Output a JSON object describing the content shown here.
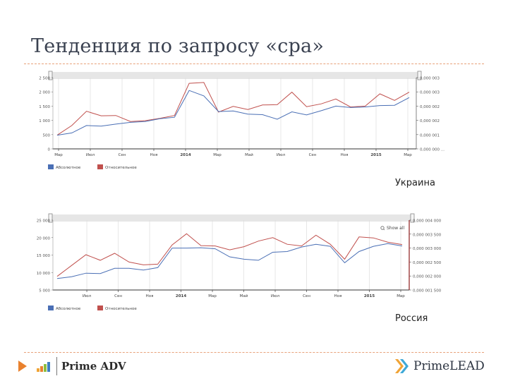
{
  "page": {
    "title": "Тенденция по запросу «cpa»"
  },
  "colors": {
    "absolute": "#4a6fb5",
    "relative": "#c0504d",
    "rule": "#e8a27a",
    "navigator": "#e6e6e6",
    "grid": "#dddddd",
    "axis": "#333333",
    "right_axis_bottom": "#8b1a1a"
  },
  "charts": [
    {
      "region_label": "Украина",
      "legend": [
        {
          "name": "Абсолютное",
          "color": "#4a6fb5"
        },
        {
          "name": "Относительное",
          "color": "#c0504d"
        }
      ]
    },
    {
      "region_label": "Россия",
      "zoom_button_label": "Show all",
      "legend": [
        {
          "name": "Абсолютное",
          "color": "#4a6fb5"
        },
        {
          "name": "Относительное",
          "color": "#c0504d"
        }
      ]
    }
  ],
  "chart_data": [
    {
      "type": "line",
      "title": "Украина",
      "xlabel": "",
      "ylabel": "",
      "x_tick_labels": [
        "Мар",
        "Июл",
        "Сен",
        "Ноя",
        "2014",
        "Мар",
        "Май",
        "Июл",
        "Сен",
        "Ноя",
        "2015",
        "Мар"
      ],
      "y_left_ticks": [
        "0",
        "500",
        "1 000",
        "1 500",
        "2 000",
        "2 500"
      ],
      "y_right_ticks": [
        "0,000 000 ...",
        "0,000 001",
        "0,000 002",
        "0,000 002",
        "0,000 003",
        "0,000 003"
      ],
      "ylim": [
        0,
        2500
      ],
      "grid": true,
      "legend_position": "bottom-left",
      "x": [
        0,
        1,
        2,
        3,
        4,
        5,
        6,
        7,
        8,
        9,
        10,
        11,
        12,
        13,
        14,
        15,
        16,
        17,
        18,
        19,
        20,
        21,
        22,
        23,
        24
      ],
      "series": [
        {
          "name": "Абсолютное",
          "axis": "left",
          "values": [
            480,
            560,
            820,
            800,
            870,
            930,
            960,
            1060,
            1110,
            2050,
            1860,
            1310,
            1330,
            1220,
            1200,
            1040,
            1300,
            1190,
            1340,
            1500,
            1450,
            1470,
            1520,
            1530,
            1800
          ]
        },
        {
          "name": "Относительное",
          "axis": "left",
          "values": [
            480,
            820,
            1320,
            1160,
            1170,
            960,
            990,
            1070,
            1170,
            2300,
            2330,
            1290,
            1490,
            1380,
            1540,
            1550,
            1990,
            1480,
            1580,
            1750,
            1470,
            1500,
            1930,
            1700,
            1990
          ]
        }
      ]
    },
    {
      "type": "line",
      "title": "Россия",
      "xlabel": "",
      "ylabel": "",
      "x_tick_labels": [
        "Июл",
        "Сен",
        "Ноя",
        "2014",
        "Мар",
        "Май",
        "Июл",
        "Сен",
        "Ноя",
        "2015",
        "Мар"
      ],
      "y_left_ticks": [
        "5 000",
        "10 000",
        "15 000",
        "20 000",
        "25 000"
      ],
      "y_right_ticks": [
        "0,000 001 500",
        "0,000 002 000",
        "0,000 002 500",
        "0,000 003 000",
        "0,000 003 500",
        "0,000 004 000"
      ],
      "ylim": [
        5000,
        25000
      ],
      "grid": true,
      "legend_position": "bottom-left",
      "x": [
        0,
        1,
        2,
        3,
        4,
        5,
        6,
        7,
        8,
        9,
        10,
        11,
        12,
        13,
        14,
        15,
        16,
        17,
        18,
        19,
        20,
        21,
        22,
        23,
        24
      ],
      "series": [
        {
          "name": "Абсолютное",
          "axis": "left",
          "values": [
            8300,
            8800,
            9800,
            9700,
            11200,
            11200,
            10700,
            11400,
            17000,
            17000,
            17100,
            16800,
            14500,
            13800,
            13500,
            15800,
            16000,
            17300,
            18100,
            17500,
            12800,
            16000,
            17500,
            18300,
            17600
          ]
        },
        {
          "name": "Относительное",
          "axis": "left",
          "values": [
            8900,
            12000,
            15100,
            13500,
            15500,
            13000,
            12200,
            12400,
            17900,
            21100,
            17700,
            17600,
            16500,
            17400,
            19000,
            20000,
            18100,
            17600,
            20700,
            18100,
            13800,
            20200,
            19900,
            18700,
            18000
          ]
        }
      ]
    }
  ],
  "footer": {
    "left_brand": "Prime ADV",
    "right_brand": "PrimeLEAD"
  }
}
